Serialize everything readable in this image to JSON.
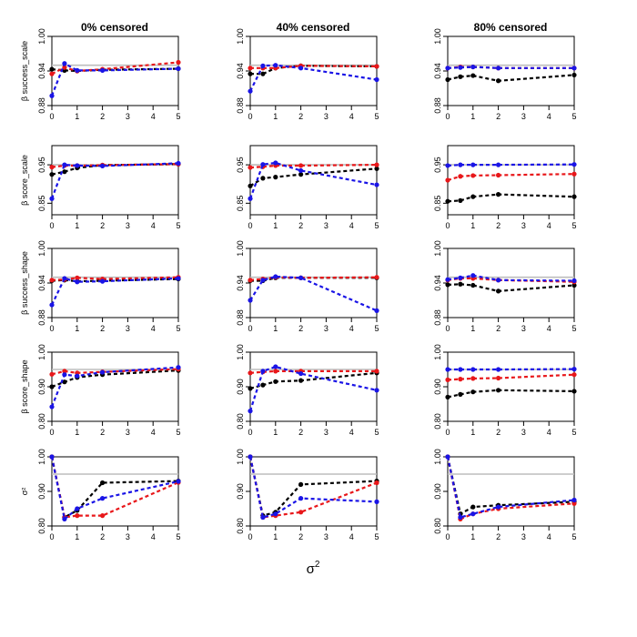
{
  "chart_data": {
    "type": "line",
    "layout": "grid",
    "rows": 5,
    "cols": 3,
    "column_titles": [
      "0% censored",
      "40% censored",
      "80% censored"
    ],
    "row_ylabels": [
      "β success_scale",
      "β score_scale",
      "β success_shape",
      "β score_shape",
      "σ²"
    ],
    "xlabel": "σ",
    "xlabel_sup": "2",
    "x": [
      0,
      0.5,
      1,
      2,
      5
    ],
    "xticks": [
      0,
      1,
      2,
      3,
      4,
      5
    ],
    "xlim": [
      0,
      5
    ],
    "reference_line": 0.95,
    "series_names": [
      "black",
      "red",
      "blue"
    ],
    "colors": {
      "black": "#000000",
      "red": "#e8171a",
      "blue": "#1a14e6",
      "reference": "#bdbdbd",
      "axis": "#000000"
    },
    "row_axes": [
      {
        "ylim": [
          0.88,
          1.0
        ],
        "yticks": [
          0.88,
          0.94,
          1.0
        ],
        "ytick_labels": [
          "0.88",
          "0.94",
          "1.00"
        ]
      },
      {
        "ylim": [
          0.82,
          1.0
        ],
        "yticks": [
          0.85,
          0.95
        ],
        "ytick_labels": [
          "0.85",
          "0.95"
        ]
      },
      {
        "ylim": [
          0.88,
          1.0
        ],
        "yticks": [
          0.88,
          0.94,
          1.0
        ],
        "ytick_labels": [
          "0.88",
          "0.94",
          "1.00"
        ]
      },
      {
        "ylim": [
          0.8,
          1.0
        ],
        "yticks": [
          0.8,
          0.9,
          1.0
        ],
        "ytick_labels": [
          "0.80",
          "0.90",
          "1.00"
        ]
      },
      {
        "ylim": [
          0.8,
          1.0
        ],
        "yticks": [
          0.8,
          0.9,
          1.0
        ],
        "ytick_labels": [
          "0.80",
          "0.90",
          "1.00"
        ]
      }
    ],
    "panels": [
      [
        {
          "black": [
            0.943,
            0.941,
            0.94,
            0.942,
            0.944
          ],
          "red": [
            0.935,
            0.946,
            0.94,
            0.943,
            0.955
          ],
          "blue": [
            0.897,
            0.953,
            0.941,
            0.941,
            0.944
          ]
        },
        {
          "black": [
            0.925,
            0.932,
            0.942,
            0.949,
            0.952
          ],
          "red": [
            0.944,
            0.948,
            0.948,
            0.949,
            0.952
          ],
          "blue": [
            0.862,
            0.95,
            0.948,
            0.947,
            0.954
          ]
        },
        {
          "black": [
            0.944,
            0.945,
            0.943,
            0.944,
            0.947
          ],
          "red": [
            0.945,
            0.946,
            0.949,
            0.947,
            0.95
          ],
          "blue": [
            0.902,
            0.948,
            0.942,
            0.943,
            0.948
          ]
        },
        {
          "black": [
            0.9,
            0.914,
            0.927,
            0.935,
            0.947
          ],
          "red": [
            0.936,
            0.945,
            0.94,
            0.943,
            0.951
          ],
          "blue": [
            0.842,
            0.935,
            0.931,
            0.942,
            0.956
          ]
        },
        {
          "black": [
            1.0,
            0.825,
            0.845,
            0.925,
            0.93
          ],
          "red": [
            1.0,
            0.825,
            0.83,
            0.83,
            0.926
          ],
          "blue": [
            1.0,
            0.82,
            0.85,
            0.88,
            0.929
          ]
        }
      ],
      [
        {
          "black": [
            0.935,
            0.935,
            0.945,
            0.949,
            0.948
          ],
          "red": [
            0.945,
            0.945,
            0.945,
            0.949,
            0.948
          ],
          "blue": [
            0.905,
            0.949,
            0.95,
            0.945,
            0.925
          ]
        },
        {
          "black": [
            0.895,
            0.915,
            0.918,
            0.925,
            0.94
          ],
          "red": [
            0.943,
            0.945,
            0.948,
            0.948,
            0.95
          ],
          "blue": [
            0.862,
            0.951,
            0.955,
            0.935,
            0.898
          ]
        },
        {
          "black": [
            0.944,
            0.944,
            0.949,
            0.949,
            0.949
          ],
          "red": [
            0.945,
            0.947,
            0.95,
            0.949,
            0.95
          ],
          "blue": [
            0.91,
            0.945,
            0.951,
            0.949,
            0.892
          ]
        },
        {
          "black": [
            0.895,
            0.905,
            0.915,
            0.918,
            0.94
          ],
          "red": [
            0.94,
            0.943,
            0.945,
            0.945,
            0.945
          ],
          "blue": [
            0.83,
            0.945,
            0.958,
            0.938,
            0.89
          ]
        },
        {
          "black": [
            1.0,
            0.83,
            0.84,
            0.92,
            0.93
          ],
          "red": [
            1.0,
            0.825,
            0.83,
            0.84,
            0.925
          ],
          "blue": [
            1.0,
            0.825,
            0.835,
            0.88,
            0.87
          ]
        }
      ],
      [
        {
          "black": [
            0.925,
            0.93,
            0.932,
            0.923,
            0.933
          ],
          "red": [
            0.945,
            0.947,
            0.947,
            0.945,
            0.945
          ],
          "blue": [
            0.945,
            0.946,
            0.947,
            0.945,
            0.945
          ]
        },
        {
          "black": [
            0.855,
            0.857,
            0.867,
            0.873,
            0.867
          ],
          "red": [
            0.91,
            0.92,
            0.922,
            0.923,
            0.926
          ],
          "blue": [
            0.948,
            0.95,
            0.95,
            0.95,
            0.951
          ]
        },
        {
          "black": [
            0.937,
            0.938,
            0.936,
            0.926,
            0.936
          ],
          "red": [
            0.945,
            0.948,
            0.948,
            0.945,
            0.942
          ],
          "blue": [
            0.946,
            0.949,
            0.953,
            0.945,
            0.944
          ]
        },
        {
          "black": [
            0.87,
            0.878,
            0.885,
            0.89,
            0.887
          ],
          "red": [
            0.92,
            0.922,
            0.924,
            0.925,
            0.935
          ],
          "blue": [
            0.95,
            0.95,
            0.95,
            0.95,
            0.951
          ]
        },
        {
          "black": [
            1.0,
            0.835,
            0.855,
            0.86,
            0.87
          ],
          "red": [
            1.0,
            0.82,
            0.835,
            0.85,
            0.865
          ],
          "blue": [
            1.0,
            0.825,
            0.835,
            0.855,
            0.875
          ]
        }
      ]
    ]
  }
}
